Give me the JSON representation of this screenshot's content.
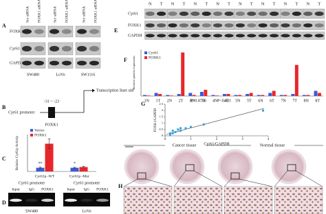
{
  "figure": {
    "A": {
      "letter": "A",
      "lanes": [
        "Scr siRNA",
        "FOXK1 siRNA",
        "Scr siRNA",
        "FOXK1 siRNA",
        "Scr siRNA",
        "FOXK1 siRNA"
      ],
      "rows": [
        "FOXK1",
        "Cyr61",
        "GAPDH"
      ],
      "cell_lines": [
        "SW480",
        "LoVo",
        "SW1116"
      ]
    },
    "B": {
      "letter": "B",
      "promoter": "Cyr61 promoter",
      "site": "-31 ~ -23",
      "tss": "Transcription Start site",
      "factor": "FOXK1"
    },
    "D": {
      "letter": "D",
      "titles": [
        "Cyr61 promoter",
        "Cyr61 promoter"
      ],
      "lanes": [
        "Input",
        "IgG",
        "FOXK1",
        "Input",
        "IgG",
        "FOXK1"
      ],
      "cell_lines": [
        "SW480",
        "LoVo"
      ]
    },
    "E": {
      "letter": "E",
      "headers": [
        "N",
        "T",
        "N",
        "T",
        "N",
        "T",
        "N",
        "T",
        "N",
        "T",
        "N",
        "T",
        "N",
        "T",
        "N",
        "T"
      ],
      "rows": [
        "Cyr61",
        "FOXK1",
        "GAPDH"
      ]
    },
    "H": {
      "letter": "H",
      "labels": [
        "Cancer tissue",
        "Normal tissue"
      ]
    }
  },
  "chart_data": [
    {
      "type": "bar",
      "letter": "F",
      "y_label": "Relative protein expression",
      "categories": [
        "1N",
        "1T",
        "2N",
        "2T",
        "3N",
        "3T",
        "4N",
        "4T",
        "5N",
        "5T",
        "6N",
        "6T",
        "7N",
        "7T",
        "8N",
        "8T"
      ],
      "series": [
        {
          "name": "Cyr61",
          "color": "#3b5bd6",
          "values": [
            1,
            3,
            1,
            2,
            3,
            4,
            1,
            2,
            1,
            2,
            1,
            3,
            1,
            2,
            1,
            5
          ]
        },
        {
          "name": "FOXK1",
          "color": "#e8262a",
          "values": [
            0.5,
            2,
            0.5,
            42,
            1,
            6,
            0.5,
            2,
            1,
            3,
            1,
            5,
            1,
            30,
            1,
            3
          ]
        }
      ],
      "ylim": [
        0,
        45
      ]
    },
    {
      "type": "bar",
      "letter": "C",
      "y_label": "Relative Cyr61p Activity",
      "categories": [
        "Cyr61p -WT",
        "Cyr61p -Mut"
      ],
      "series": [
        {
          "name": "Vector",
          "color": "#3b5bd6",
          "values": [
            1,
            1
          ],
          "errors": [
            0.2,
            0.15
          ]
        },
        {
          "name": "FOXK1",
          "color": "#e8262a",
          "values": [
            7.5,
            1.2
          ],
          "errors": [
            1.3,
            0.2
          ]
        }
      ],
      "annotations": [
        "**",
        "*"
      ],
      "ylim": [
        0,
        10
      ]
    },
    {
      "type": "scatter",
      "letter": "G",
      "x_label": "Cyr61/GAPDH",
      "y_label": "FOXK1/GAPDH",
      "annotations": [
        "R=0.8756",
        "P<0.001"
      ],
      "x": [
        0.2,
        0.3,
        0.3,
        0.4,
        0.5,
        0.6,
        0.6,
        0.8,
        1,
        1.5,
        0.2,
        3.8
      ],
      "values": [
        0.1,
        0.2,
        0.4,
        0.3,
        0.5,
        0.4,
        0.6,
        0.6,
        0.7,
        0.9,
        0.2,
        2
      ],
      "color": "#3aa0d8",
      "xlim": [
        0,
        4
      ],
      "xticks": [
        0,
        1,
        2,
        3,
        4
      ],
      "ylim": [
        0,
        2.5
      ],
      "yticks": [
        0,
        0.5,
        1,
        1.5,
        2,
        2.5
      ]
    }
  ]
}
